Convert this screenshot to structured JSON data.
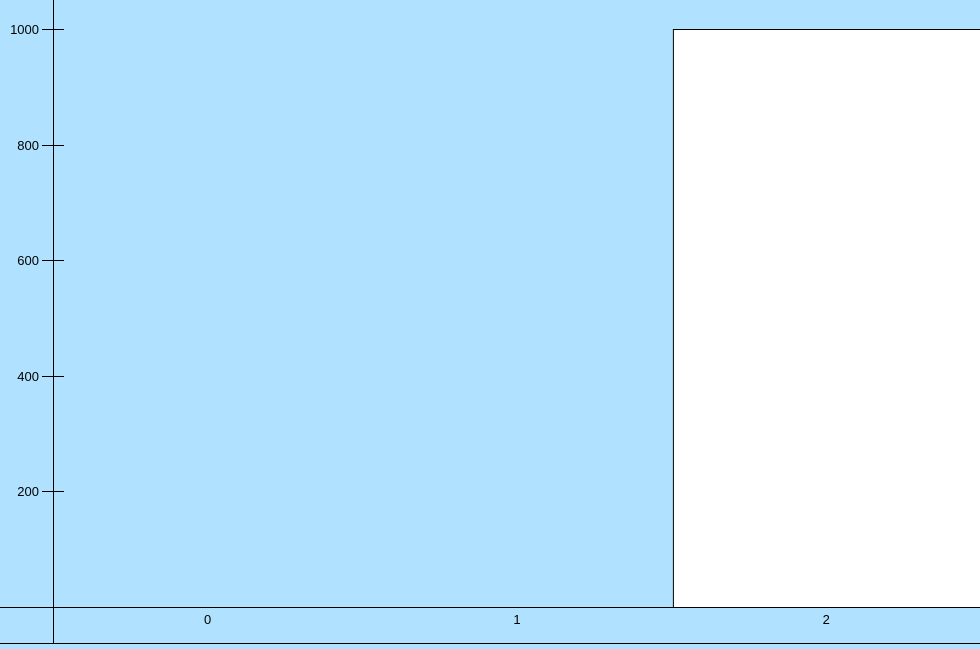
{
  "chart_data": {
    "type": "bar",
    "categories": [
      "0",
      "1",
      "2"
    ],
    "values": [
      null,
      null,
      1000
    ],
    "ylim": [
      0,
      1000
    ],
    "yticks": [
      200,
      400,
      600,
      800,
      1000
    ],
    "xticks": [
      "0",
      "1",
      "2"
    ],
    "grid": false,
    "legend": "none",
    "title": "",
    "xlabel": "",
    "ylabel": "",
    "colors": {
      "background": "#b0e2ff",
      "bar_fill": "#ffffff",
      "bar_stroke": "#000000",
      "axis": "#000000"
    }
  }
}
